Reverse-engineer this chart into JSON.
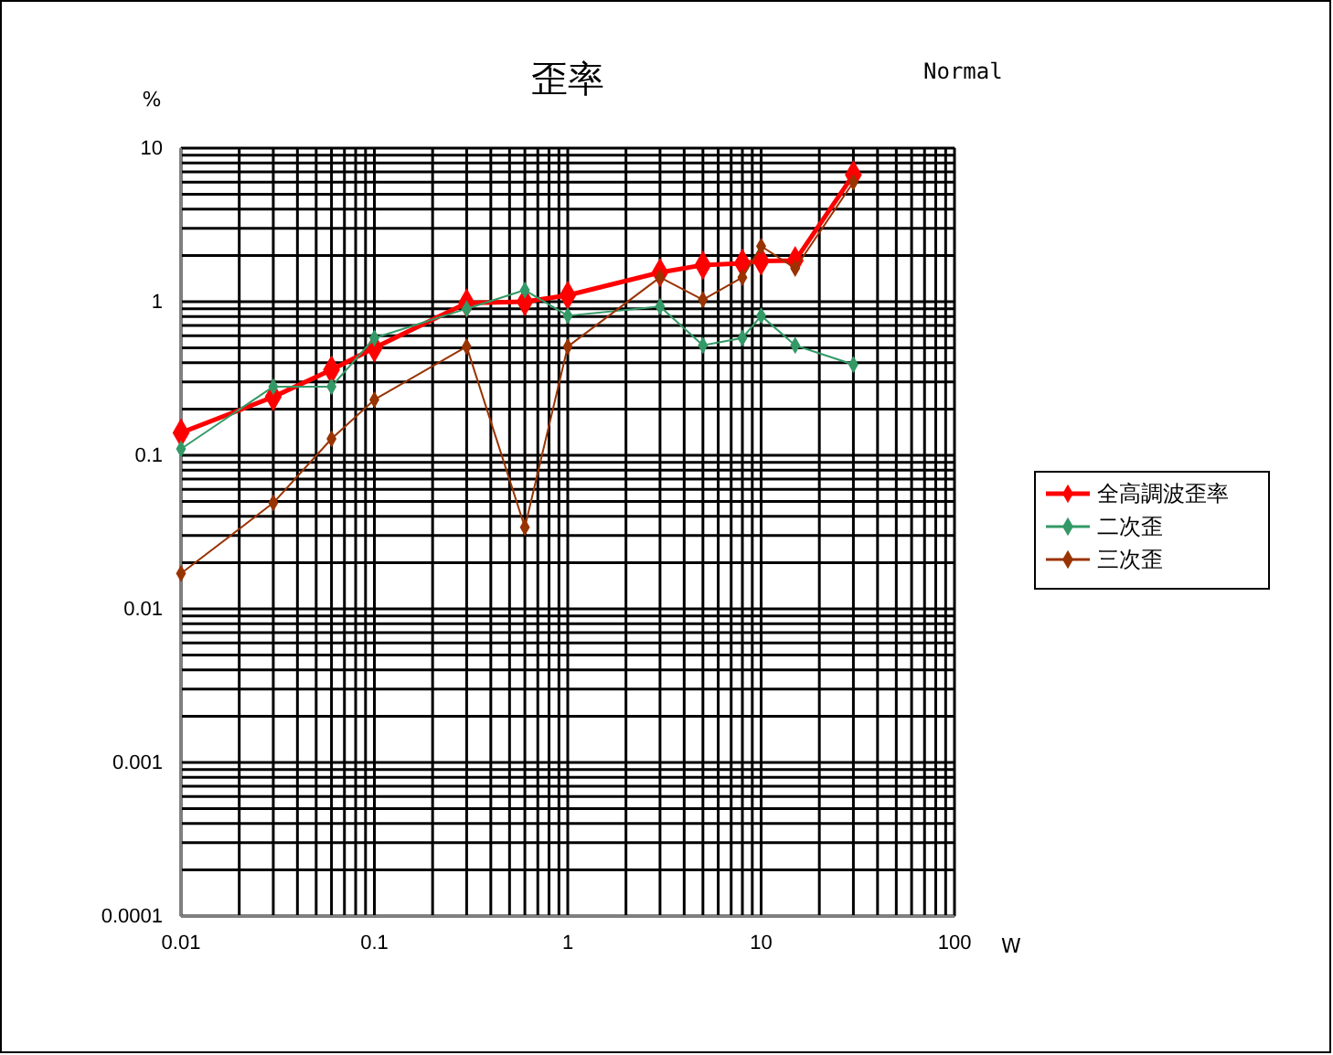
{
  "chart_data": {
    "type": "line",
    "title": "歪率",
    "xlabel": "W",
    "ylabel": "%",
    "annotations": [
      "Normal"
    ],
    "log": "xy",
    "grid": true,
    "legend": "right",
    "marker": "diamond",
    "line_style": "solid",
    "x": [
      0.01,
      0.03,
      0.06,
      0.1,
      0.3,
      0.6,
      1,
      3,
      5,
      8,
      10,
      15,
      30
    ],
    "series": [
      {
        "name": "全高調波歪率",
        "color": "#ff0000",
        "values": [
          0.14,
          0.24,
          0.36,
          0.5,
          0.98,
          1.0,
          1.1,
          1.55,
          1.73,
          1.78,
          1.84,
          1.85,
          6.7
        ]
      },
      {
        "name": "二次歪",
        "color": "#339966",
        "values": [
          0.11,
          0.28,
          0.28,
          0.58,
          0.9,
          1.19,
          0.81,
          0.93,
          0.52,
          0.58,
          0.81,
          0.52,
          0.39
        ]
      },
      {
        "name": "三次歪",
        "color": "#993300",
        "values": [
          0.017,
          0.049,
          0.128,
          0.23,
          0.51,
          0.034,
          0.51,
          1.44,
          1.03,
          1.44,
          2.3,
          1.65,
          6.0
        ]
      }
    ],
    "xlim": [
      0.01,
      100
    ],
    "ylim": [
      0.0001,
      10
    ],
    "xticks": [
      0.01,
      {
        "value": 0.02,
        "label": null
      },
      {
        "value": 0.03,
        "label": null
      },
      {
        "value": 0.04,
        "label": null
      },
      {
        "value": 0.05,
        "label": null
      },
      {
        "value": 0.06,
        "label": null
      },
      {
        "value": 0.07,
        "label": null
      },
      {
        "value": 0.08,
        "label": null
      },
      {
        "value": 0.09,
        "label": null
      },
      0.1,
      {
        "value": 0.2,
        "label": null
      },
      {
        "value": 0.3,
        "label": null
      },
      {
        "value": 0.4,
        "label": null
      },
      {
        "value": 0.5,
        "label": null
      },
      {
        "value": 0.6,
        "label": null
      },
      {
        "value": 0.7,
        "label": null
      },
      {
        "value": 0.8,
        "label": null
      },
      {
        "value": 0.9,
        "label": null
      },
      1,
      {
        "value": 2,
        "label": null
      },
      {
        "value": 3,
        "label": null
      },
      {
        "value": 4,
        "label": null
      },
      {
        "value": 5,
        "label": null
      },
      {
        "value": 6,
        "label": null
      },
      {
        "value": 7,
        "label": null
      },
      {
        "value": 8,
        "label": null
      },
      {
        "value": 9,
        "label": null
      },
      10,
      {
        "value": 20,
        "label": null
      },
      {
        "value": 30,
        "label": null
      },
      {
        "value": 40,
        "label": null
      },
      {
        "value": 50,
        "label": null
      },
      {
        "value": 60,
        "label": null
      },
      {
        "value": 70,
        "label": null
      },
      {
        "value": 80,
        "label": null
      },
      {
        "value": 90,
        "label": null
      },
      100
    ],
    "yticks": [
      0.0001,
      {
        "value": 0.0002,
        "label": null
      },
      {
        "value": 0.0003,
        "label": null
      },
      {
        "value": 0.0004,
        "label": null
      },
      {
        "value": 0.0005,
        "label": null
      },
      {
        "value": 0.0006,
        "label": null
      },
      {
        "value": 0.0007,
        "label": null
      },
      {
        "value": 0.0008,
        "label": null
      },
      {
        "value": 0.0009,
        "label": null
      },
      0.001,
      {
        "value": 0.002,
        "label": null
      },
      {
        "value": 0.003,
        "label": null
      },
      {
        "value": 0.004,
        "label": null
      },
      {
        "value": 0.005,
        "label": null
      },
      {
        "value": 0.006,
        "label": null
      },
      {
        "value": 0.007,
        "label": null
      },
      {
        "value": 0.008,
        "label": null
      },
      {
        "value": 0.009,
        "label": null
      },
      0.01,
      {
        "value": 0.02,
        "label": null
      },
      {
        "value": 0.03,
        "label": null
      },
      {
        "value": 0.04,
        "label": null
      },
      {
        "value": 0.05,
        "label": null
      },
      {
        "value": 0.06,
        "label": null
      },
      {
        "value": 0.07,
        "label": null
      },
      {
        "value": 0.08,
        "label": null
      },
      {
        "value": 0.09,
        "label": null
      },
      0.1,
      {
        "value": 0.2,
        "label": null
      },
      {
        "value": 0.3,
        "label": null
      },
      {
        "value": 0.4,
        "label": null
      },
      {
        "value": 0.5,
        "label": null
      },
      {
        "value": 0.6,
        "label": null
      },
      {
        "value": 0.7,
        "label": null
      },
      {
        "value": 0.8,
        "label": null
      },
      {
        "value": 0.9,
        "label": null
      },
      1,
      {
        "value": 2,
        "label": null
      },
      {
        "value": 3,
        "label": null
      },
      {
        "value": 4,
        "label": null
      },
      {
        "value": 5,
        "label": null
      },
      {
        "value": 6,
        "label": null
      },
      {
        "value": 7,
        "label": null
      },
      {
        "value": 8,
        "label": null
      },
      {
        "value": 9,
        "label": null
      },
      10
    ]
  }
}
